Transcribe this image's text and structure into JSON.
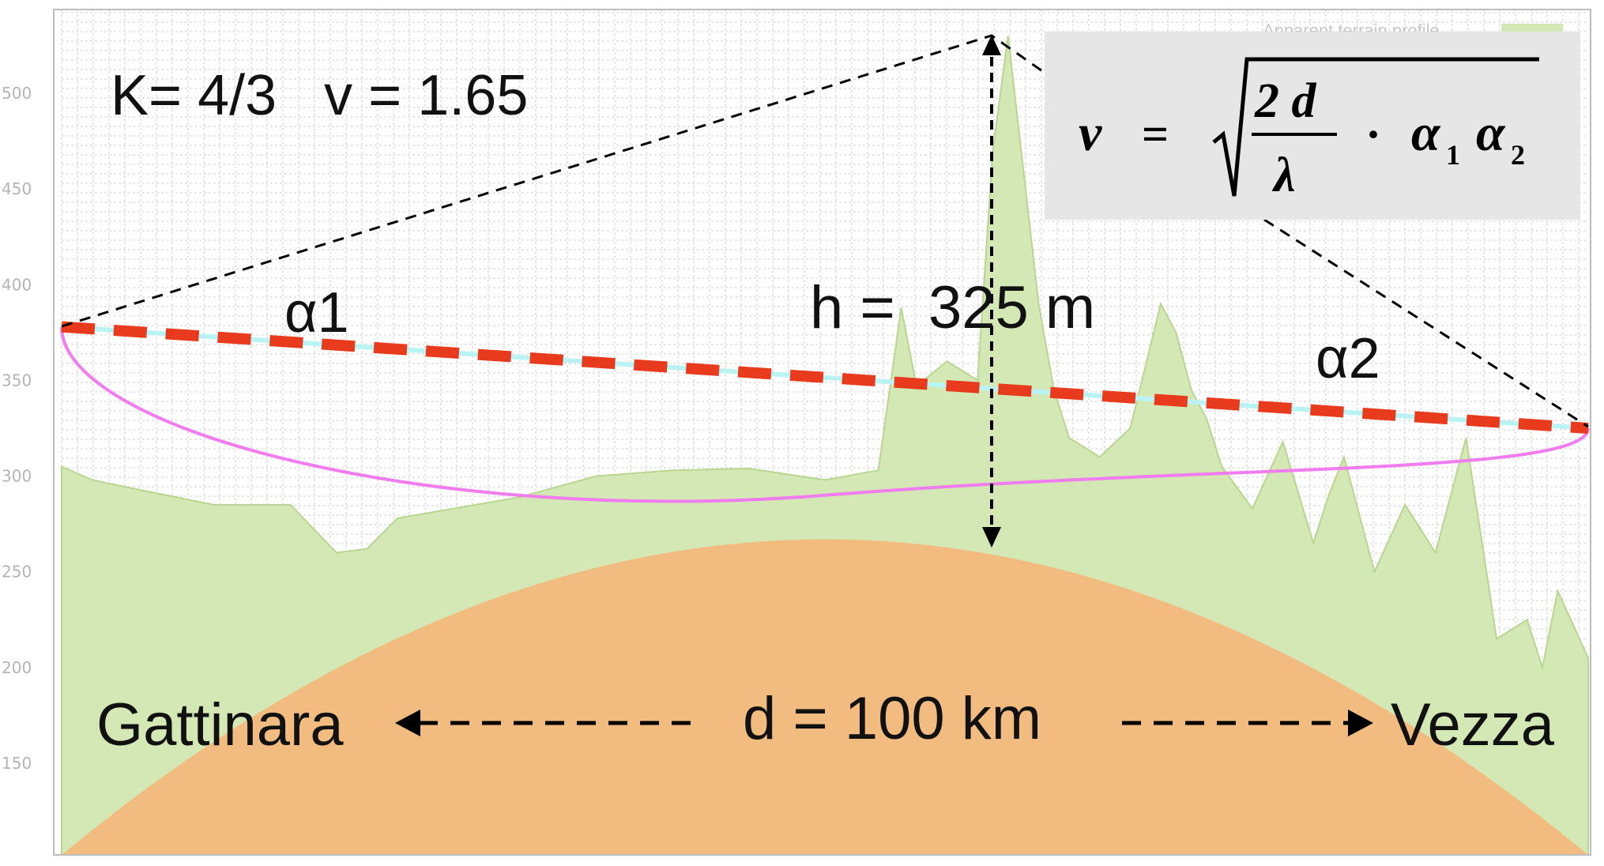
{
  "chart_data": {
    "type": "area",
    "title": "",
    "xlabel": "",
    "ylabel": "",
    "ylim": [
      110,
      540
    ],
    "yticks": [
      "500",
      "450",
      "400",
      "350",
      "300",
      "250",
      "200",
      "150"
    ],
    "grid": true,
    "legend_position": "top-right",
    "series": [
      {
        "name": "Apparent terrain profile",
        "x": [
          0,
          2,
          5,
          10,
          15,
          18,
          20,
          22,
          30,
          35,
          40,
          45,
          50,
          53.5,
          55,
          56,
          58,
          60,
          61,
          62,
          64,
          65,
          66,
          68,
          70,
          72,
          73,
          74,
          75,
          76,
          78,
          80,
          82,
          83,
          84,
          86,
          88,
          90,
          92,
          94,
          96,
          97,
          98,
          100
        ],
        "values": [
          305,
          298,
          293,
          285,
          285,
          260,
          262,
          278,
          289,
          300,
          303,
          304,
          298,
          303,
          388,
          347,
          360,
          350,
          470,
          530,
          390,
          345,
          320,
          310,
          325,
          390,
          375,
          345,
          330,
          305,
          283,
          318,
          265,
          290,
          310,
          250,
          285,
          260,
          320,
          215,
          225,
          200,
          240,
          205
        ]
      }
    ],
    "curves": {
      "earth_bulge_top": 267,
      "line_of_sight": {
        "start": 378,
        "end": 325
      },
      "fresnel_ellipse_bottom": 290
    },
    "labels": {
      "params": "K= 4/3   v = 1.65",
      "alpha1": "α1",
      "alpha2": "α2",
      "height": "h =  325 m",
      "distance": "d = 100 km",
      "left_site": "Gattinara",
      "right_site": "Vezza",
      "legend_text": "Apparent terrain profile"
    },
    "formula": {
      "lhs": "ν",
      "eq": "=",
      "num": "2 d",
      "den": "λ",
      "dot": "·",
      "a1": "α",
      "a1_sub": "1",
      "a2": "α",
      "a2_sub": "2"
    },
    "colors": {
      "terrain": "#d3e8b4",
      "terrain_edge": "#b9d690",
      "earth": "#f2bb7f",
      "line_of_sight": "#e83a1c",
      "fresnel": "#f07cef",
      "cyan_ray": "#b9f3f3",
      "grid": "#cfcfcf",
      "formula_bg": "#e6e6e6"
    }
  }
}
